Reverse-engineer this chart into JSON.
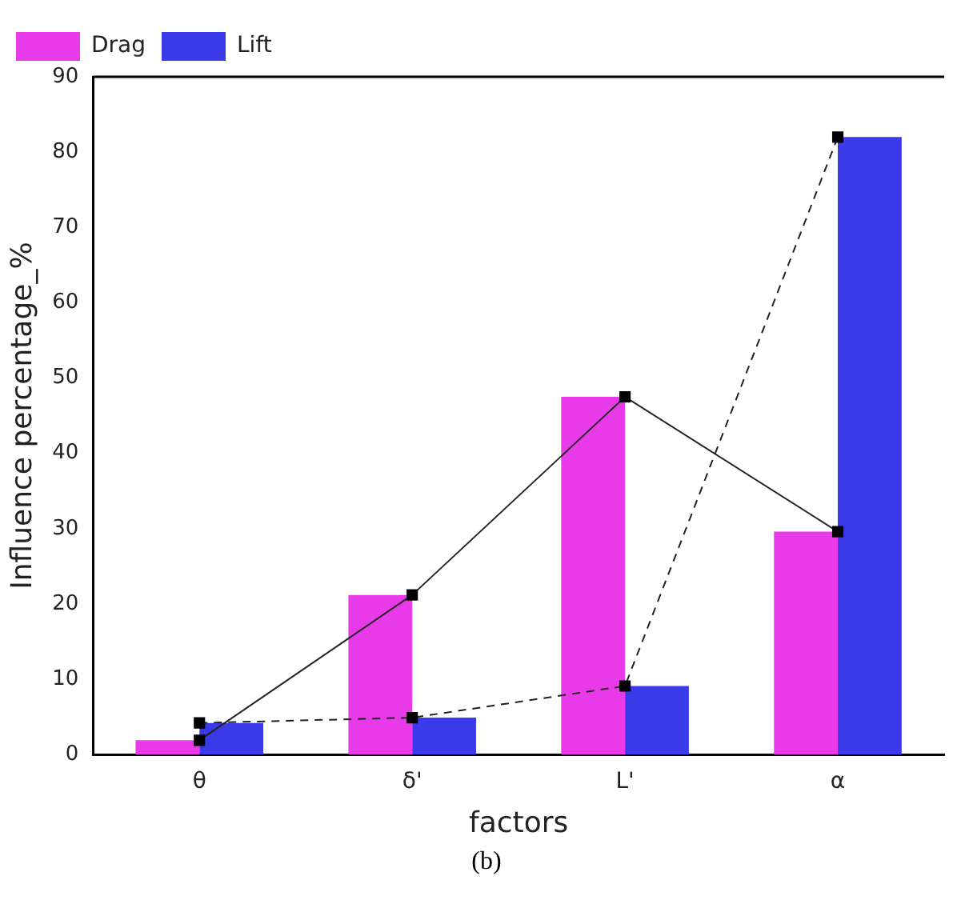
{
  "chart_data": {
    "type": "bar",
    "xlabel": "factors",
    "ylabel": "Influence percentage_%",
    "categories": [
      "θ",
      "δ'",
      "L'",
      "α"
    ],
    "series": [
      {
        "name": "Drag",
        "color": "#e83ae8",
        "values": [
          1.9,
          21.2,
          47.5,
          29.6
        ]
      },
      {
        "name": "Lift",
        "color": "#3a3ae8",
        "values": [
          4.2,
          4.9,
          9.1,
          82
        ]
      },
      {
        "type": "line",
        "color": "#222222",
        "values": [
          1.9,
          21.2,
          47.5,
          29.6
        ],
        "line_style": "solid",
        "marker": "square"
      },
      {
        "type": "line",
        "color": "#222222",
        "values": [
          4.2,
          4.9,
          9.1,
          82
        ],
        "line_style": "dashed",
        "marker": "square"
      }
    ],
    "ylim": [
      0,
      90
    ],
    "yticks": [
      0,
      10,
      20,
      30,
      40,
      50,
      60,
      70,
      80,
      90
    ],
    "grid": false,
    "legend": "top left",
    "annotations": [
      "(b)"
    ]
  }
}
